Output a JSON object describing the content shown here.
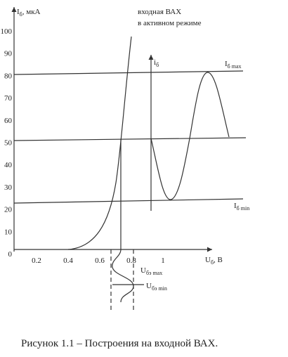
{
  "figure": {
    "y_axis": {
      "symbol": "I",
      "subscript": "б",
      "unit": ", мкА",
      "ticks": [
        "100",
        "90",
        "80",
        "70",
        "60",
        "50",
        "40",
        "30",
        "20",
        "10",
        "0"
      ]
    },
    "x_axis": {
      "symbol": "U",
      "subscript": "б",
      "unit": ", В",
      "ticks": [
        "0.2",
        "0.4",
        "0.6",
        "0.8",
        "1"
      ]
    },
    "annotation": {
      "line1": "входная ВАХ",
      "line2": "в активном режиме"
    },
    "current_axis": {
      "symbol": "i",
      "subscript": "б"
    },
    "levels": {
      "max": {
        "symbol": "I",
        "subscript": "б max"
      },
      "min": {
        "symbol": "I",
        "subscript": "б min"
      }
    },
    "voltages": {
      "max": {
        "symbol": "U",
        "subscript": "бэ max"
      },
      "min": {
        "symbol": "U",
        "subscript": "бэ min"
      }
    },
    "caption": "Рисунок 1.1 – Построения на входной ВАХ."
  }
}
